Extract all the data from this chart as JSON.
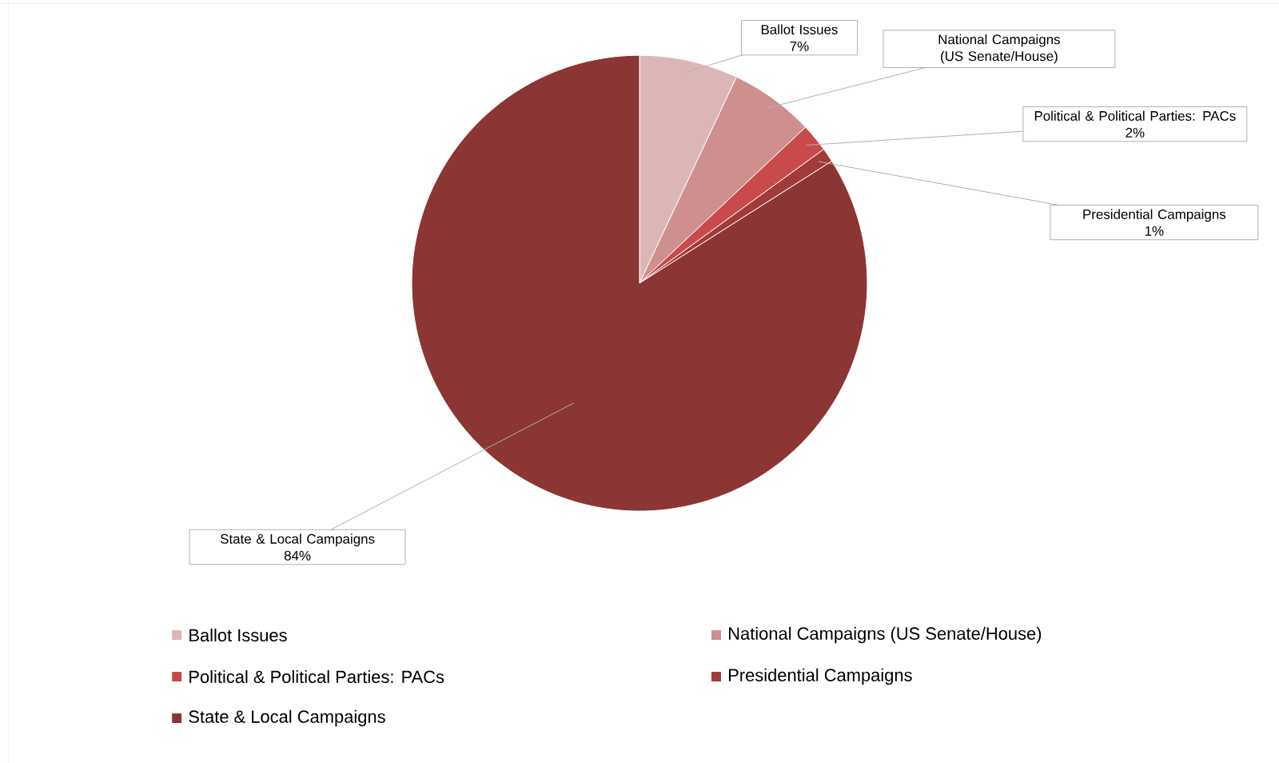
{
  "chart_data": {
    "type": "pie",
    "categories": [
      "Ballot Issues",
      "National Campaigns (US Senate/House)",
      "Political & Political Parties: PACs",
      "Presidential Campaigns",
      "State & Local Campaigns"
    ],
    "values": [
      7,
      6,
      2,
      1,
      84
    ],
    "value_labels": [
      "7%",
      null,
      "2%",
      "1%",
      "84%"
    ],
    "colors": [
      "#dcb6b6",
      "#cf8f8f",
      "#c94a4a",
      "#a33a3a",
      "#8b3535"
    ],
    "legend": "bottom"
  }
}
